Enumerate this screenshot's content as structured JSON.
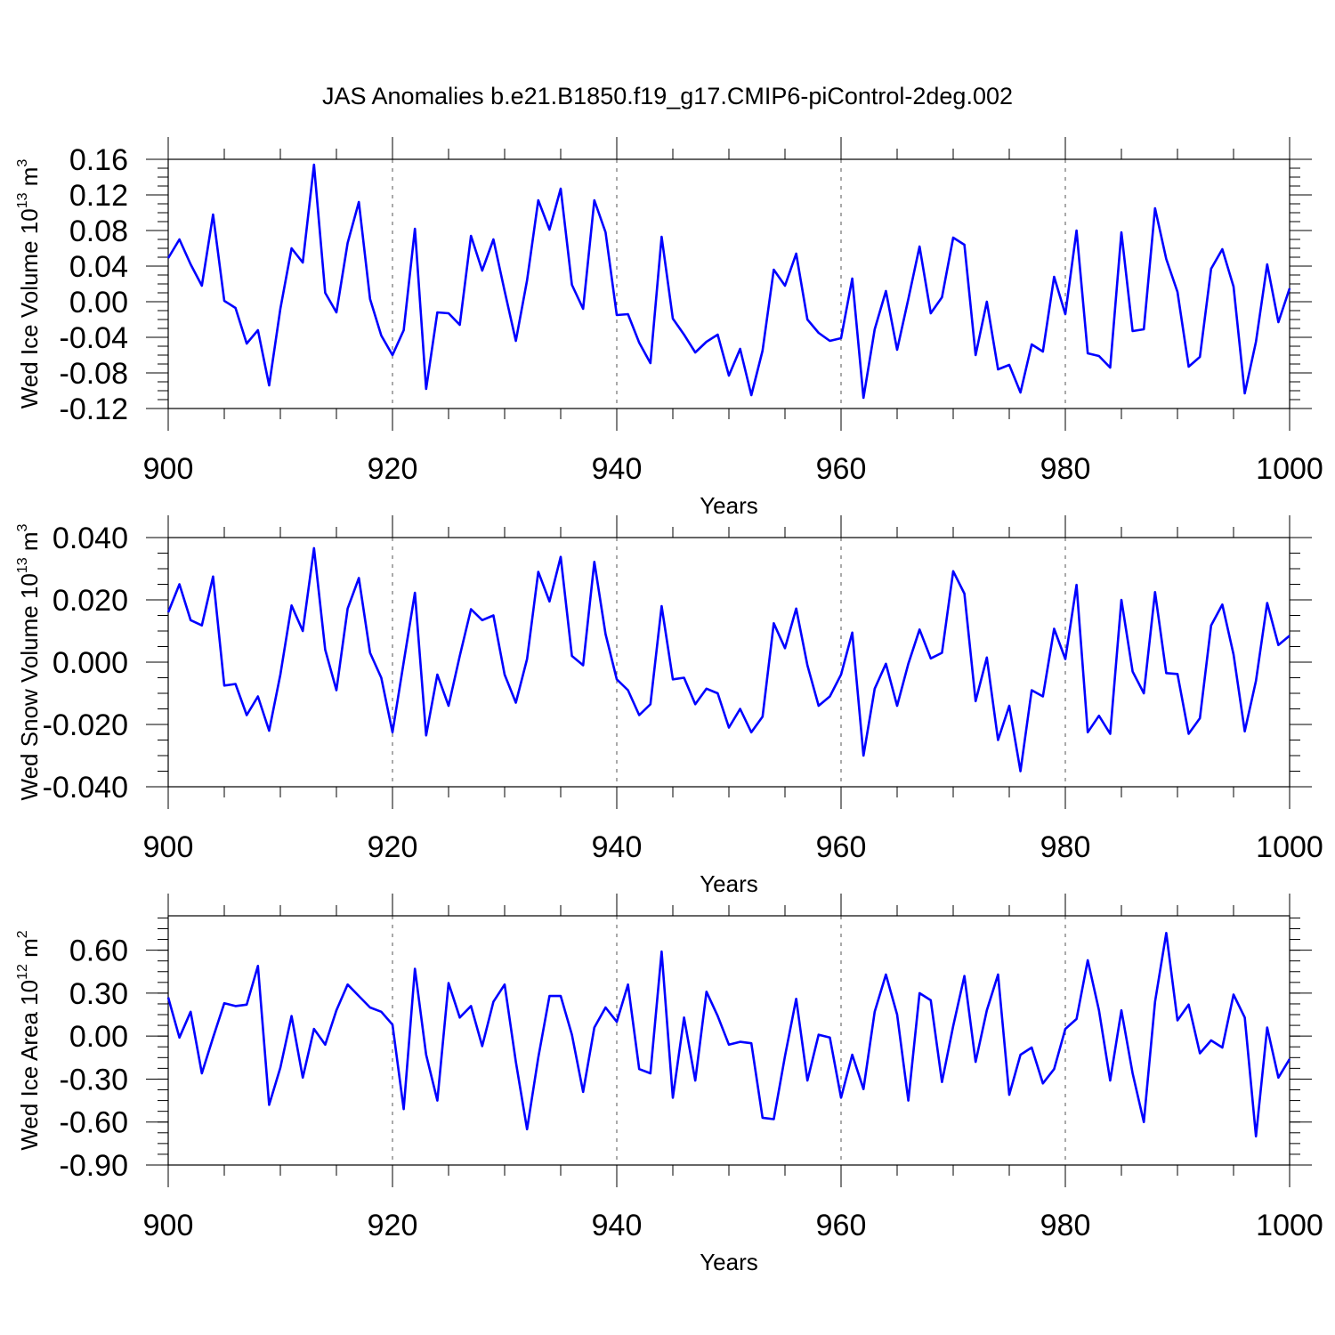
{
  "title": "JAS Anomalies b.e21.B1850.f19_g17.CMIP6-piControl-2deg.002",
  "colors": {
    "line": "#0000ff",
    "axis": "#000000",
    "grid": "#555555"
  },
  "chart_data": [
    {
      "type": "line",
      "xlabel": "Years",
      "ylabel": "Wed Ice Volume 10",
      "ylabel_exp": "13",
      "ylabel_unit": " m",
      "ylabel_unit_exp": "3",
      "xlim": [
        900,
        1000
      ],
      "ylim": [
        -0.12,
        0.16
      ],
      "xticks": [
        "900",
        "920",
        "940",
        "960",
        "980",
        "1000"
      ],
      "yticks": [
        "-0.12",
        "-0.08",
        "-0.04",
        "0.00",
        "0.04",
        "0.08",
        "0.12",
        "0.16"
      ],
      "grid_x": [
        920,
        940,
        960,
        980
      ],
      "x": [
        900,
        901,
        902,
        903,
        904,
        905,
        906,
        907,
        908,
        909,
        910,
        911,
        912,
        913,
        914,
        915,
        916,
        917,
        918,
        919,
        920,
        921,
        922,
        923,
        924,
        925,
        926,
        927,
        928,
        929,
        930,
        931,
        932,
        933,
        934,
        935,
        936,
        937,
        938,
        939,
        940,
        941,
        942,
        943,
        944,
        945,
        946,
        947,
        948,
        949,
        950,
        951,
        952,
        953,
        954,
        955,
        956,
        957,
        958,
        959,
        960,
        961,
        962,
        963,
        964,
        965,
        966,
        967,
        968,
        969,
        970,
        971,
        972,
        973,
        974,
        975,
        976,
        977,
        978,
        979,
        980,
        981,
        982,
        983,
        984,
        985,
        986,
        987,
        988,
        989,
        990,
        991,
        992,
        993,
        994,
        995,
        996,
        997,
        998,
        999,
        1000
      ],
      "values": [
        0.049,
        0.07,
        0.042,
        0.018,
        0.098,
        0.001,
        -0.007,
        -0.047,
        -0.032,
        -0.094,
        -0.008,
        0.06,
        0.044,
        0.154,
        0.01,
        -0.012,
        0.066,
        0.112,
        0.003,
        -0.038,
        -0.06,
        -0.032,
        0.082,
        -0.098,
        -0.012,
        -0.013,
        -0.026,
        0.074,
        0.035,
        0.07,
        0.012,
        -0.044,
        0.024,
        0.114,
        0.081,
        0.127,
        0.019,
        -0.008,
        0.114,
        0.078,
        -0.015,
        -0.014,
        -0.046,
        -0.069,
        0.073,
        -0.019,
        -0.037,
        -0.057,
        -0.045,
        -0.037,
        -0.083,
        -0.053,
        -0.105,
        -0.055,
        0.036,
        0.018,
        0.054,
        -0.02,
        -0.035,
        -0.044,
        -0.041,
        0.026,
        -0.108,
        -0.031,
        0.012,
        -0.054,
        0.003,
        0.062,
        -0.013,
        0.005,
        0.072,
        0.064,
        -0.06,
        0.0,
        -0.076,
        -0.071,
        -0.102,
        -0.048,
        -0.056,
        0.028,
        -0.014,
        0.08,
        -0.058,
        -0.061,
        -0.074,
        0.078,
        -0.033,
        -0.031,
        0.105,
        0.048,
        0.011,
        -0.073,
        -0.062,
        0.037,
        0.059,
        0.017,
        -0.103,
        -0.045,
        0.042,
        -0.023,
        0.015
      ]
    },
    {
      "type": "line",
      "xlabel": "Years",
      "ylabel": "Wed Snow Volume 10",
      "ylabel_exp": "13",
      "ylabel_unit": " m",
      "ylabel_unit_exp": "3",
      "xlim": [
        900,
        1000
      ],
      "ylim": [
        -0.04,
        0.04
      ],
      "xticks": [
        "900",
        "920",
        "940",
        "960",
        "980",
        "1000"
      ],
      "yticks": [
        "-0.040",
        "-0.020",
        "0.000",
        "0.020",
        "0.040"
      ],
      "grid_x": [
        920,
        940,
        960,
        980
      ],
      "x": [
        900,
        901,
        902,
        903,
        904,
        905,
        906,
        907,
        908,
        909,
        910,
        911,
        912,
        913,
        914,
        915,
        916,
        917,
        918,
        919,
        920,
        921,
        922,
        923,
        924,
        925,
        926,
        927,
        928,
        929,
        930,
        931,
        932,
        933,
        934,
        935,
        936,
        937,
        938,
        939,
        940,
        941,
        942,
        943,
        944,
        945,
        946,
        947,
        948,
        949,
        950,
        951,
        952,
        953,
        954,
        955,
        956,
        957,
        958,
        959,
        960,
        961,
        962,
        963,
        964,
        965,
        966,
        967,
        968,
        969,
        970,
        971,
        972,
        973,
        974,
        975,
        976,
        977,
        978,
        979,
        980,
        981,
        982,
        983,
        984,
        985,
        986,
        987,
        988,
        989,
        990,
        991,
        992,
        993,
        994,
        995,
        996,
        997,
        998,
        999,
        1000
      ],
      "values": [
        0.016,
        0.025,
        0.0135,
        0.0118,
        0.0275,
        -0.0075,
        -0.007,
        -0.017,
        -0.011,
        -0.022,
        -0.004,
        0.0182,
        0.01,
        0.0366,
        0.004,
        -0.009,
        0.0172,
        0.027,
        0.003,
        -0.005,
        -0.0225,
        0.0,
        0.0223,
        -0.0235,
        -0.004,
        -0.014,
        0.002,
        0.017,
        0.0135,
        0.015,
        -0.004,
        -0.013,
        0.001,
        0.029,
        0.0195,
        0.0338,
        0.002,
        -0.001,
        0.0322,
        0.009,
        -0.0055,
        -0.009,
        -0.017,
        -0.0135,
        0.018,
        -0.0055,
        -0.005,
        -0.0135,
        -0.0085,
        -0.01,
        -0.021,
        -0.015,
        -0.0225,
        -0.0175,
        0.0125,
        0.0045,
        0.0172,
        -0.001,
        -0.014,
        -0.011,
        -0.004,
        0.0095,
        -0.03,
        -0.0085,
        -0.0005,
        -0.014,
        -0.0005,
        0.0105,
        0.0012,
        0.003,
        0.0292,
        0.022,
        -0.0125,
        0.0015,
        -0.025,
        -0.014,
        -0.035,
        -0.009,
        -0.011,
        0.0107,
        0.001,
        0.0248,
        -0.0225,
        -0.0172,
        -0.023,
        0.02,
        -0.003,
        -0.01,
        0.0225,
        -0.0035,
        -0.0038,
        -0.023,
        -0.018,
        0.0118,
        0.0185,
        0.0025,
        -0.0222,
        -0.006,
        0.019,
        0.0055,
        0.0085
      ]
    },
    {
      "type": "line",
      "xlabel": "Years",
      "ylabel": "Wed Ice Area 10",
      "ylabel_exp": "12",
      "ylabel_unit": " m",
      "ylabel_unit_exp": "2",
      "xlim": [
        900,
        1000
      ],
      "ylim": [
        -0.9,
        0.9
      ],
      "xticks": [
        "900",
        "920",
        "940",
        "960",
        "980",
        "1000"
      ],
      "yticks": [
        "-0.90",
        "-0.60",
        "-0.30",
        "0.00",
        "0.30",
        "0.60"
      ],
      "grid_x": [
        920,
        940,
        960,
        980
      ],
      "x": [
        900,
        901,
        902,
        903,
        904,
        905,
        906,
        907,
        908,
        909,
        910,
        911,
        912,
        913,
        914,
        915,
        916,
        917,
        918,
        919,
        920,
        921,
        922,
        923,
        924,
        925,
        926,
        927,
        928,
        929,
        930,
        931,
        932,
        933,
        934,
        935,
        936,
        937,
        938,
        939,
        940,
        941,
        942,
        943,
        944,
        945,
        946,
        947,
        948,
        949,
        950,
        951,
        952,
        953,
        954,
        955,
        956,
        957,
        958,
        959,
        960,
        961,
        962,
        963,
        964,
        965,
        966,
        967,
        968,
        969,
        970,
        971,
        972,
        973,
        974,
        975,
        976,
        977,
        978,
        979,
        980,
        981,
        982,
        983,
        984,
        985,
        986,
        987,
        988,
        989,
        990,
        991,
        992,
        993,
        994,
        995,
        996,
        997,
        998,
        999,
        1000
      ],
      "values": [
        0.27,
        -0.01,
        0.17,
        -0.26,
        -0.01,
        0.23,
        0.21,
        0.22,
        0.49,
        -0.48,
        -0.22,
        0.14,
        -0.29,
        0.05,
        -0.06,
        0.18,
        0.36,
        0.28,
        0.2,
        0.17,
        0.08,
        -0.51,
        0.47,
        -0.13,
        -0.45,
        0.37,
        0.13,
        0.21,
        -0.07,
        0.24,
        0.36,
        -0.18,
        -0.65,
        -0.15,
        0.28,
        0.28,
        0.01,
        -0.39,
        0.06,
        0.2,
        0.1,
        0.36,
        -0.23,
        -0.26,
        0.59,
        -0.43,
        0.13,
        -0.31,
        0.31,
        0.14,
        -0.06,
        -0.04,
        -0.05,
        -0.57,
        -0.58,
        -0.14,
        0.26,
        -0.31,
        0.01,
        -0.01,
        -0.43,
        -0.13,
        -0.37,
        0.17,
        0.43,
        0.15,
        -0.45,
        0.3,
        0.25,
        -0.32,
        0.07,
        0.42,
        -0.18,
        0.18,
        0.43,
        -0.41,
        -0.13,
        -0.08,
        -0.33,
        -0.23,
        0.05,
        0.12,
        0.53,
        0.18,
        -0.31,
        0.18,
        -0.26,
        -0.6,
        0.24,
        0.72,
        0.11,
        0.22,
        -0.12,
        -0.03,
        -0.08,
        0.29,
        0.13,
        -0.7,
        0.06,
        -0.29,
        -0.16
      ]
    }
  ]
}
